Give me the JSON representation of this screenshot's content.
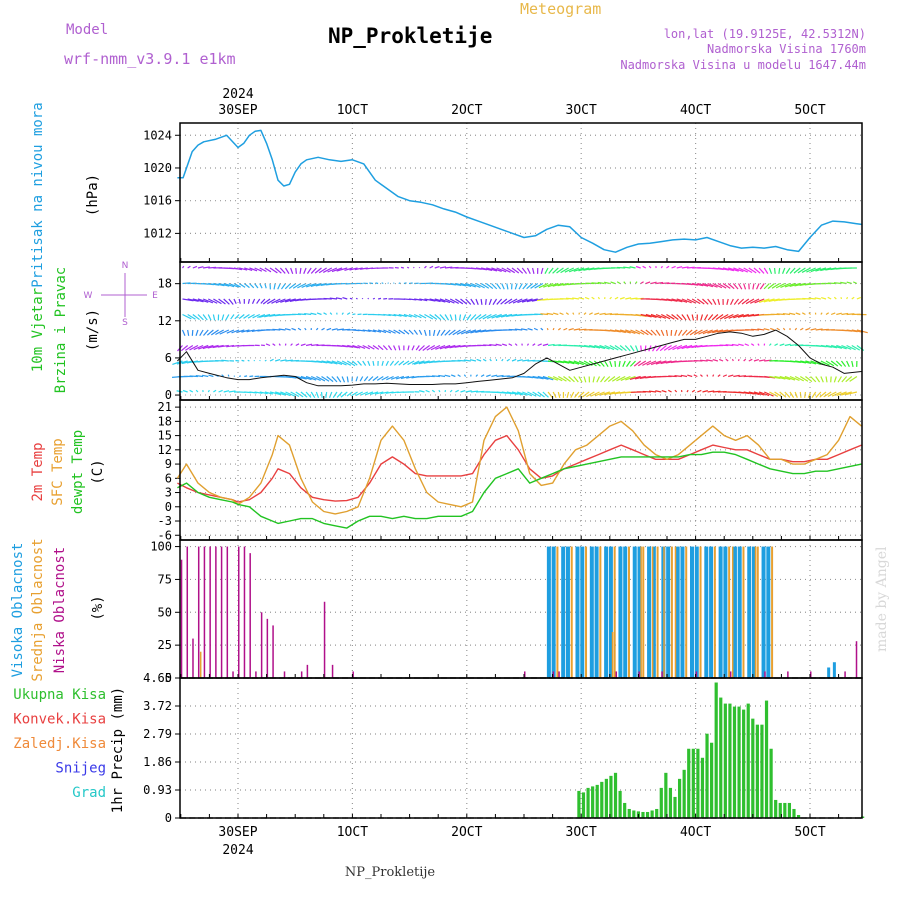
{
  "header": {
    "model_label": "Model",
    "model_name": "wrf-nmm_v3.9.1 e1km",
    "title": "NP_Prokletije",
    "subtitle": "Meteogram",
    "coords": "lon,lat (19.9125E, 42.5312N)",
    "elevation": "Nadmorska Visina 1760m",
    "model_elevation": "Nadmorska Visina u modelu 1647.44m",
    "footer": "NP_Prokletije",
    "watermark": "made by Angel"
  },
  "colors": {
    "pressure": "#1f9fe0",
    "precip": "#2fbf2f",
    "temp2m": "#e84040",
    "sfc": "#e0a030",
    "dew": "#22c322",
    "high_cloud": "#1e9ee0",
    "mid_cloud": "#e8a030",
    "low_cloud": "#b0108a"
  },
  "time_axis": {
    "top_year": "2024",
    "bottom_year": "2024",
    "labels": [
      "30SEP",
      "1OCT",
      "2OCT",
      "3OCT",
      "4OCT",
      "5OCT"
    ],
    "label_days": [
      0,
      1,
      2,
      3,
      4,
      5
    ]
  },
  "chart_data": [
    {
      "type": "line",
      "panel": "pressure",
      "ylabel_main": "Pritisak na nivou mora",
      "ylabel_unit": "(hPa)",
      "yticks": [
        1012,
        1016,
        1020,
        1024
      ],
      "ylim": [
        1008.5,
        1025.5
      ],
      "x_days": [
        -0.53,
        -0.48,
        -0.45,
        -0.4,
        -0.35,
        -0.3,
        -0.2,
        -0.1,
        0,
        0.05,
        0.1,
        0.15,
        0.2,
        0.25,
        0.3,
        0.35,
        0.4,
        0.45,
        0.5,
        0.55,
        0.6,
        0.7,
        0.8,
        0.9,
        1.0,
        1.1,
        1.2,
        1.3,
        1.4,
        1.5,
        1.6,
        1.7,
        1.8,
        1.9,
        2.0,
        2.1,
        2.2,
        2.3,
        2.4,
        2.5,
        2.6,
        2.7,
        2.8,
        2.9,
        3.0,
        3.1,
        3.2,
        3.3,
        3.4,
        3.5,
        3.6,
        3.7,
        3.8,
        3.9,
        4.0,
        4.1,
        4.2,
        4.3,
        4.4,
        4.5,
        4.6,
        4.7,
        4.8,
        4.9,
        5.0,
        5.1,
        5.2,
        5.3,
        5.4,
        5.45
      ],
      "values": [
        1018.8,
        1018.8,
        1020,
        1022,
        1022.8,
        1023.2,
        1023.5,
        1024,
        1022.5,
        1023,
        1024,
        1024.5,
        1024.6,
        1023,
        1021,
        1018.5,
        1017.8,
        1018,
        1019.5,
        1020.5,
        1021,
        1021.3,
        1021,
        1020.8,
        1021,
        1020.5,
        1018.5,
        1017.5,
        1016.5,
        1016,
        1015.8,
        1015.5,
        1015,
        1014.6,
        1014,
        1013.5,
        1013,
        1012.5,
        1012,
        1011.5,
        1011.7,
        1012.5,
        1013,
        1012.8,
        1011.5,
        1010.8,
        1010,
        1009.7,
        1010.3,
        1010.7,
        1010.8,
        1011,
        1011.2,
        1011.3,
        1011.2,
        1011.5,
        1011,
        1010.5,
        1010.2,
        1010.3,
        1010.2,
        1010.4,
        1010,
        1009.8,
        1011.5,
        1013,
        1013.5,
        1013.4,
        1013.2,
        1013.1
      ]
    },
    {
      "type": "line",
      "panel": "wind",
      "ylabel_main": "10m Vjetar",
      "ylabel_main2": "Brzina i Pravac",
      "ylabel_unit": "(m/s)",
      "compass": {
        "n": "N",
        "s": "S",
        "w": "W",
        "e": "E"
      },
      "yticks": [
        0,
        6,
        12,
        18
      ],
      "ylim": [
        -0.8,
        21.5
      ],
      "x_days": [
        -0.53,
        -0.45,
        -0.35,
        -0.25,
        -0.1,
        0,
        0.1,
        0.2,
        0.3,
        0.4,
        0.5,
        0.6,
        0.7,
        0.8,
        0.9,
        1.0,
        1.1,
        1.2,
        1.3,
        1.4,
        1.5,
        1.6,
        1.7,
        1.8,
        1.9,
        2.0,
        2.1,
        2.2,
        2.3,
        2.4,
        2.5,
        2.6,
        2.7,
        2.8,
        2.9,
        3.0,
        3.1,
        3.2,
        3.3,
        3.4,
        3.5,
        3.6,
        3.7,
        3.8,
        3.9,
        4.0,
        4.1,
        4.2,
        4.3,
        4.4,
        4.5,
        4.6,
        4.7,
        4.8,
        4.9,
        5.0,
        5.1,
        5.2,
        5.3,
        5.45
      ],
      "values": [
        5.5,
        7,
        4,
        3.5,
        2.8,
        2.5,
        2.5,
        2.8,
        3.0,
        3.2,
        3.0,
        2.0,
        1.5,
        1.5,
        1.5,
        1.6,
        1.8,
        1.8,
        1.9,
        1.8,
        1.7,
        1.7,
        1.7,
        1.8,
        1.8,
        2.0,
        2.2,
        2.4,
        2.6,
        2.8,
        3.5,
        5,
        6,
        5,
        4,
        4.5,
        5,
        5.5,
        6,
        6.5,
        7,
        7.5,
        8,
        8.5,
        9,
        9,
        9.5,
        10,
        10.2,
        10,
        9.5,
        9.8,
        10.5,
        9.5,
        8,
        6,
        5,
        4.5,
        3.5,
        3.8
      ]
    },
    {
      "type": "line",
      "panel": "temperature",
      "ylabel_a": "2m Temp",
      "ylabel_b": "SFC Temp",
      "ylabel_c": "dewpt Temp",
      "ylabel_unit": "(C)",
      "yticks": [
        -6,
        -3,
        0,
        3,
        6,
        9,
        12,
        15,
        18,
        21
      ],
      "ylim": [
        -7,
        22.5
      ],
      "x_days": [
        -0.53,
        -0.45,
        -0.35,
        -0.25,
        -0.15,
        -0.05,
        0,
        0.1,
        0.2,
        0.3,
        0.35,
        0.45,
        0.55,
        0.65,
        0.75,
        0.85,
        0.95,
        1.05,
        1.15,
        1.25,
        1.35,
        1.45,
        1.55,
        1.65,
        1.75,
        1.85,
        1.95,
        2.05,
        2.15,
        2.25,
        2.35,
        2.45,
        2.55,
        2.65,
        2.75,
        2.85,
        2.95,
        3.05,
        3.15,
        3.25,
        3.35,
        3.45,
        3.55,
        3.65,
        3.75,
        3.85,
        3.95,
        4.05,
        4.15,
        4.25,
        4.35,
        4.45,
        4.55,
        4.65,
        4.75,
        4.85,
        4.95,
        5.05,
        5.15,
        5.25,
        5.35,
        5.45
      ],
      "series": [
        {
          "name": "2m Temp",
          "key": "temp2m",
          "values": [
            5,
            4,
            3,
            2.5,
            2,
            1.5,
            1,
            1.5,
            3,
            6,
            8,
            7,
            4,
            2,
            1.5,
            1.2,
            1.3,
            2,
            5,
            9,
            10.5,
            9,
            7,
            6.5,
            6.5,
            6.5,
            6.5,
            7,
            11,
            14,
            15,
            12,
            8,
            6,
            6.5,
            8,
            9,
            10,
            11,
            12,
            13,
            12,
            11,
            10,
            10,
            10,
            11,
            12,
            13,
            12.5,
            12,
            12,
            11,
            10,
            10,
            9.5,
            9.5,
            10,
            10,
            11,
            12,
            13
          ]
        },
        {
          "name": "SFC Temp",
          "key": "sfc",
          "values": [
            6,
            9,
            5,
            3,
            2,
            1.5,
            0.5,
            2,
            5,
            11,
            15,
            13,
            6,
            1,
            -1,
            -1.5,
            -1,
            0,
            6,
            14,
            17,
            14,
            8,
            3,
            1,
            0.5,
            0,
            1,
            14,
            19,
            21,
            16,
            7,
            4.5,
            5,
            9,
            12,
            13,
            15,
            17,
            18,
            16,
            13,
            11,
            10,
            11,
            13,
            15,
            17,
            15,
            14,
            15,
            13,
            10,
            10,
            9,
            9,
            10,
            11,
            14,
            19,
            17
          ]
        },
        {
          "name": "dewpt Temp",
          "key": "dew",
          "values": [
            4,
            5,
            3,
            2,
            1.5,
            1,
            0.5,
            0,
            -2,
            -3,
            -3.5,
            -3,
            -2.5,
            -2.5,
            -3.5,
            -4,
            -4.5,
            -3,
            -2,
            -2,
            -2.5,
            -2,
            -2.5,
            -2.5,
            -2,
            -2,
            -2,
            -1,
            3,
            6,
            7,
            8,
            5,
            6,
            7,
            8,
            8.5,
            9,
            9.5,
            10,
            10.5,
            10.5,
            10.5,
            10.5,
            10.5,
            10.5,
            11,
            11,
            11.5,
            11.5,
            11,
            10,
            9,
            8,
            7.5,
            7,
            7,
            7.5,
            7.5,
            8,
            8.5,
            9
          ]
        }
      ]
    },
    {
      "type": "bar",
      "panel": "clouds",
      "ylabel_a": "Visoka Oblacnost",
      "ylabel_b": "Srednja Oblacnost",
      "ylabel_c": "Niska Oblacnost",
      "ylabel_unit": "(%)",
      "yticks": [
        0,
        25,
        50,
        75,
        100
      ],
      "ylim": [
        0,
        105
      ],
      "low_x": [
        -0.5,
        -0.45,
        -0.4,
        -0.35,
        -0.3,
        -0.25,
        -0.2,
        -0.15,
        -0.1,
        -0.05,
        0,
        0.05,
        0.1,
        0.15,
        0.2,
        0.25,
        0.3,
        0.4,
        0.55,
        0.6,
        0.75,
        0.82,
        1.0,
        2.5,
        2.75,
        2.8,
        3.3,
        3.5,
        3.7,
        4.0,
        4.3,
        4.6,
        4.8,
        5.0,
        5.3,
        5.4
      ],
      "low_v": [
        90,
        100,
        30,
        100,
        100,
        100,
        100,
        100,
        100,
        5,
        100,
        100,
        95,
        5,
        50,
        45,
        40,
        5,
        5,
        10,
        58,
        10,
        5,
        5,
        5,
        5,
        5,
        5,
        5,
        5,
        5,
        5,
        5,
        5,
        5,
        28
      ],
      "mid_x": [
        -0.35,
        3.25,
        3.5,
        3.6,
        3.7,
        3.8,
        4.3,
        4.5
      ],
      "mid_v": [
        20,
        35,
        100,
        100,
        100,
        100,
        100,
        100
      ],
      "high_x": [
        5.15,
        5.2
      ],
      "high_v": [
        8,
        12
      ],
      "dense_start": 2.7,
      "dense_end": 4.67
    },
    {
      "type": "bar",
      "panel": "precip",
      "legend": [
        "Ukupna Kisa",
        "Konvek.Kisa",
        "Zaledj.Kisa",
        "Snijeg",
        "Grad"
      ],
      "legend_colors": [
        "#2fbf2f",
        "#e84040",
        "#ef8a3a",
        "#3a3ae8",
        "#25c8c8"
      ],
      "ylabel": "1hr Precip (mm)",
      "yticks": [
        0,
        0.93,
        1.86,
        2.79,
        3.72,
        4.65
      ],
      "ylim": [
        0,
        4.65
      ],
      "x_days": [
        2.98,
        3.02,
        3.06,
        3.1,
        3.14,
        3.18,
        3.22,
        3.26,
        3.3,
        3.34,
        3.38,
        3.42,
        3.46,
        3.5,
        3.54,
        3.58,
        3.62,
        3.66,
        3.7,
        3.74,
        3.78,
        3.82,
        3.86,
        3.9,
        3.94,
        3.98,
        4.02,
        4.06,
        4.1,
        4.14,
        4.18,
        4.22,
        4.26,
        4.3,
        4.34,
        4.38,
        4.42,
        4.46,
        4.5,
        4.54,
        4.58,
        4.62,
        4.66,
        4.7,
        4.74,
        4.78,
        4.82,
        4.86,
        4.9,
        5.46
      ],
      "values": [
        0.9,
        0.85,
        1.0,
        1.05,
        1.1,
        1.2,
        1.3,
        1.4,
        1.5,
        0.9,
        0.5,
        0.3,
        0.25,
        0.22,
        0.2,
        0.2,
        0.25,
        0.3,
        1.0,
        1.5,
        1.0,
        0.7,
        1.3,
        1.6,
        2.3,
        2.3,
        2.3,
        2.0,
        2.8,
        2.5,
        4.5,
        4.0,
        3.8,
        3.8,
        3.7,
        3.7,
        3.6,
        3.8,
        3.3,
        3.1,
        3.1,
        3.9,
        2.3,
        0.6,
        0.5,
        0.5,
        0.5,
        0.3,
        0.1,
        0.05
      ]
    }
  ]
}
